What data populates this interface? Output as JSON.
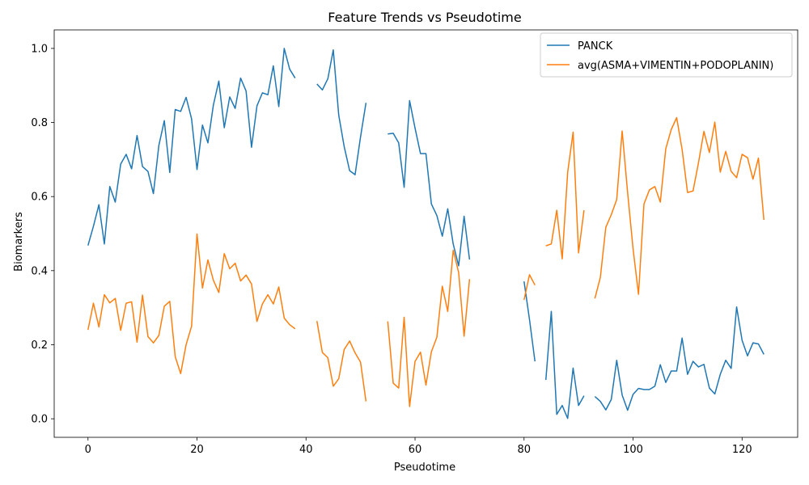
{
  "chart_data": {
    "type": "line",
    "title": "Feature Trends vs Pseudotime",
    "xlabel": "Pseudotime",
    "ylabel": "Biomarkers",
    "xlim": [
      -6.2,
      130.2
    ],
    "ylim": [
      -0.05,
      1.05
    ],
    "xticks": [
      0,
      20,
      40,
      60,
      80,
      100,
      120
    ],
    "yticks": [
      0.0,
      0.2,
      0.4,
      0.6,
      0.8,
      1.0
    ],
    "xtick_labels": [
      "0",
      "20",
      "40",
      "60",
      "80",
      "100",
      "120"
    ],
    "ytick_labels": [
      "0.0",
      "0.2",
      "0.4",
      "0.6",
      "0.8",
      "1.0"
    ],
    "grid": false,
    "legend_position": "upper right",
    "series": [
      {
        "name": "PANCK",
        "color": "#1f77b4",
        "x": [
          0,
          1,
          2,
          3,
          4,
          5,
          6,
          7,
          8,
          9,
          10,
          11,
          12,
          13,
          14,
          15,
          16,
          17,
          18,
          19,
          20,
          21,
          22,
          23,
          24,
          25,
          26,
          27,
          28,
          29,
          30,
          31,
          32,
          33,
          34,
          35,
          36,
          37,
          38,
          39,
          40,
          41,
          42,
          43,
          44,
          45,
          46,
          47,
          48,
          49,
          50,
          51,
          52,
          53,
          54,
          55,
          56,
          57,
          58,
          59,
          60,
          61,
          62,
          63,
          64,
          65,
          66,
          67,
          68,
          69,
          70,
          71,
          72,
          73,
          74,
          75,
          76,
          77,
          78,
          79,
          80,
          81,
          82,
          83,
          84,
          85,
          86,
          87,
          88,
          89,
          90,
          91,
          92,
          93,
          94,
          95,
          96,
          97,
          98,
          99,
          100,
          101,
          102,
          103,
          104,
          105,
          106,
          107,
          108,
          109,
          110,
          111,
          112,
          113,
          114,
          115,
          116,
          117,
          118,
          119,
          120,
          121,
          122,
          123,
          124
        ],
        "y": [
          0.468,
          0.52,
          0.578,
          0.472,
          0.627,
          0.585,
          0.688,
          0.714,
          0.675,
          0.765,
          0.681,
          0.668,
          0.608,
          0.738,
          0.805,
          0.665,
          0.835,
          0.83,
          0.868,
          0.81,
          0.673,
          0.793,
          0.745,
          0.847,
          0.912,
          0.786,
          0.869,
          0.838,
          0.92,
          0.885,
          0.733,
          0.845,
          0.88,
          0.875,
          0.953,
          0.843,
          1.0,
          0.944,
          0.92,
          null,
          null,
          null,
          0.904,
          0.888,
          0.918,
          0.996,
          0.82,
          0.735,
          0.67,
          0.659,
          0.761,
          0.853,
          null,
          null,
          null,
          0.769,
          0.771,
          0.745,
          0.625,
          0.859,
          0.785,
          0.716,
          0.716,
          0.58,
          0.549,
          0.493,
          0.567,
          0.472,
          0.413,
          0.547,
          0.43,
          null,
          null,
          null,
          null,
          null,
          null,
          null,
          null,
          null,
          0.371,
          0.268,
          0.155,
          null,
          0.105,
          0.29,
          0.012,
          0.036,
          0.001,
          0.137,
          0.036,
          0.062,
          null,
          0.06,
          0.047,
          0.024,
          0.052,
          0.158,
          0.064,
          0.023,
          0.066,
          0.082,
          0.079,
          0.079,
          0.088,
          0.146,
          0.098,
          0.129,
          0.129,
          0.218,
          0.12,
          0.155,
          0.14,
          0.147,
          0.083,
          0.067,
          0.12,
          0.158,
          0.136,
          0.302,
          0.212,
          0.17,
          0.205,
          0.202,
          0.174
        ]
      },
      {
        "name": "avg(ASMA+VIMENTIN+PODOPLANIN)",
        "color": "#ff7f0e",
        "x": [
          0,
          1,
          2,
          3,
          4,
          5,
          6,
          7,
          8,
          9,
          10,
          11,
          12,
          13,
          14,
          15,
          16,
          17,
          18,
          19,
          20,
          21,
          22,
          23,
          24,
          25,
          26,
          27,
          28,
          29,
          30,
          31,
          32,
          33,
          34,
          35,
          36,
          37,
          38,
          39,
          40,
          41,
          42,
          43,
          44,
          45,
          46,
          47,
          48,
          49,
          50,
          51,
          52,
          53,
          54,
          55,
          56,
          57,
          58,
          59,
          60,
          61,
          62,
          63,
          64,
          65,
          66,
          67,
          68,
          69,
          70,
          71,
          72,
          73,
          74,
          75,
          76,
          77,
          78,
          79,
          80,
          81,
          82,
          83,
          84,
          85,
          86,
          87,
          88,
          89,
          90,
          91,
          92,
          93,
          94,
          95,
          96,
          97,
          98,
          99,
          100,
          101,
          102,
          103,
          104,
          105,
          106,
          107,
          108,
          109,
          110,
          111,
          112,
          113,
          114,
          115,
          116,
          117,
          118,
          119,
          120,
          121,
          122,
          123,
          124
        ],
        "y": [
          0.24,
          0.312,
          0.248,
          0.335,
          0.313,
          0.325,
          0.239,
          0.312,
          0.316,
          0.207,
          0.334,
          0.222,
          0.205,
          0.225,
          0.304,
          0.317,
          0.168,
          0.122,
          0.2,
          0.25,
          0.499,
          0.353,
          0.429,
          0.374,
          0.341,
          0.446,
          0.405,
          0.42,
          0.372,
          0.388,
          0.364,
          0.263,
          0.31,
          0.335,
          0.31,
          0.356,
          0.272,
          0.254,
          0.243,
          null,
          null,
          null,
          0.264,
          0.179,
          0.165,
          0.088,
          0.108,
          0.187,
          0.21,
          0.178,
          0.153,
          0.047,
          null,
          null,
          null,
          0.263,
          0.096,
          0.083,
          0.274,
          0.033,
          0.155,
          0.18,
          0.091,
          0.181,
          0.22,
          0.358,
          0.29,
          0.455,
          0.395,
          0.223,
          0.377,
          null,
          null,
          null,
          null,
          null,
          null,
          null,
          null,
          null,
          0.321,
          0.389,
          0.361,
          null,
          0.467,
          0.472,
          0.563,
          0.432,
          0.665,
          0.774,
          0.448,
          0.563,
          null,
          0.325,
          0.382,
          0.517,
          0.551,
          0.592,
          0.777,
          0.611,
          0.459,
          0.336,
          0.58,
          0.618,
          0.627,
          0.585,
          0.729,
          0.781,
          0.813,
          0.727,
          0.611,
          0.615,
          0.691,
          0.776,
          0.719,
          0.801,
          0.666,
          0.722,
          0.668,
          0.651,
          0.714,
          0.705,
          0.647,
          0.704,
          0.537
        ]
      }
    ]
  }
}
